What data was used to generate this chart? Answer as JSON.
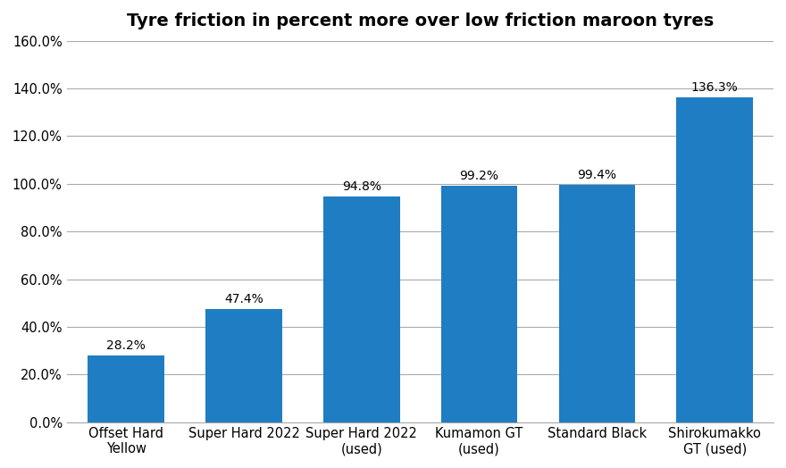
{
  "title": "Tyre friction in percent more over low friction maroon tyres",
  "categories": [
    "Offset Hard\nYellow",
    "Super Hard 2022",
    "Super Hard 2022\n(used)",
    "Kumamon GT\n(used)",
    "Standard Black",
    "Shirokumakko\nGT (used)"
  ],
  "values": [
    28.2,
    47.4,
    94.8,
    99.2,
    99.4,
    136.3
  ],
  "bar_color": "#1F7DC4",
  "ylim": [
    0,
    160
  ],
  "yticks": [
    0,
    20,
    40,
    60,
    80,
    100,
    120,
    140,
    160
  ],
  "title_fontsize": 14,
  "label_fontsize": 10,
  "tick_fontsize": 10.5,
  "background_color": "#ffffff",
  "grid_color": "#aaaaaa"
}
